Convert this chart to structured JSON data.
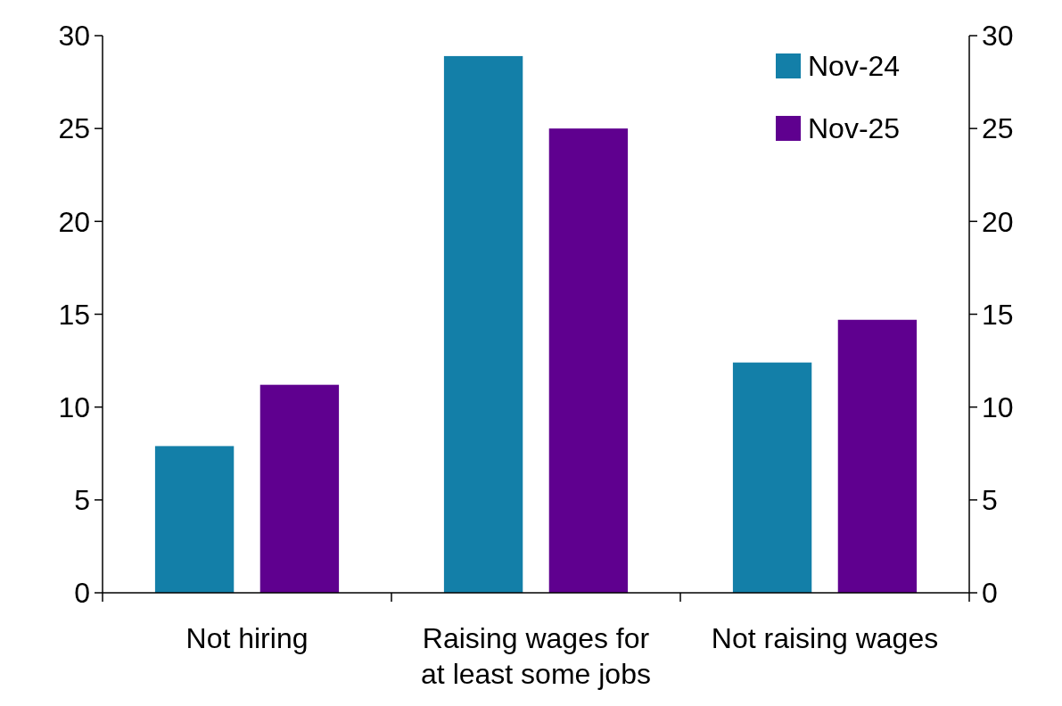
{
  "chart_data": {
    "type": "bar",
    "categories": [
      "Not hiring",
      "Raising wages for at least some jobs",
      "Not raising wages"
    ],
    "series": [
      {
        "name": "Nov-24",
        "color": "#137fa8",
        "values": [
          7.9,
          28.9,
          12.4
        ]
      },
      {
        "name": "Nov-25",
        "color": "#5f008f",
        "values": [
          11.2,
          25,
          14.7
        ]
      }
    ],
    "ylim": [
      0,
      30
    ],
    "yticks": [
      0,
      5,
      10,
      15,
      20,
      25,
      30
    ],
    "y2lim": [
      0,
      30
    ],
    "y2ticks": [
      0,
      5,
      10,
      15,
      20,
      25,
      30
    ],
    "grid": false,
    "legend": "top right"
  }
}
